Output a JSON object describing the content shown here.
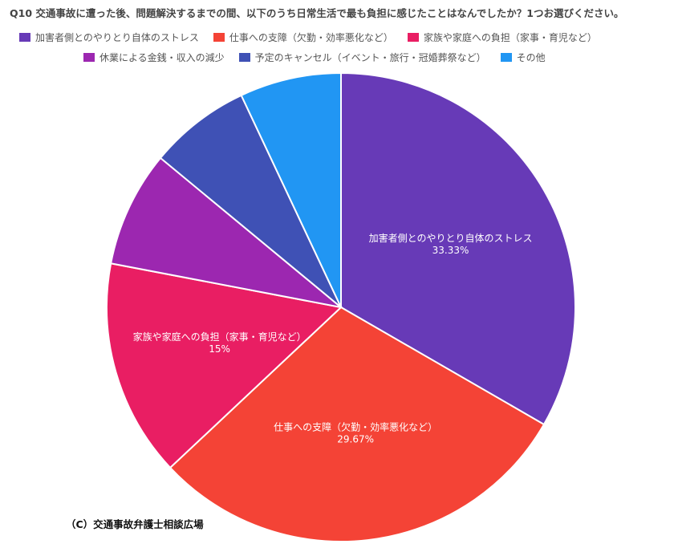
{
  "chart_data": {
    "type": "pie",
    "title": "Q10 交通事故に遭った後、問題解決するまでの間、以下のうち日常生活で最も負担に感じたことはなんでしたか？1つお選びください。",
    "legend_position": "top",
    "slices": [
      {
        "label": "加害者側とのやりとり自体のストレス",
        "value": 33.33,
        "value_label": "33.33%",
        "color": "#673ab7"
      },
      {
        "label": "仕事への支障（欠勤・効率悪化など）",
        "value": 29.67,
        "value_label": "29.67%",
        "color": "#f44336"
      },
      {
        "label": "家族や家庭への負担（家事・育児など）",
        "value": 15,
        "value_label": "15%",
        "color": "#e91e63"
      },
      {
        "label": "休業による金銭・収入の減少",
        "value": 8,
        "value_label": "",
        "color": "#9c27b0"
      },
      {
        "label": "予定のキャンセル（イベント・旅行・冠婚葬祭など）",
        "value": 7,
        "value_label": "",
        "color": "#3f51b5"
      },
      {
        "label": "その他",
        "value": 7,
        "value_label": "",
        "color": "#2196f3"
      }
    ]
  },
  "copyright": "（C）交通事故弁護士相談広場"
}
